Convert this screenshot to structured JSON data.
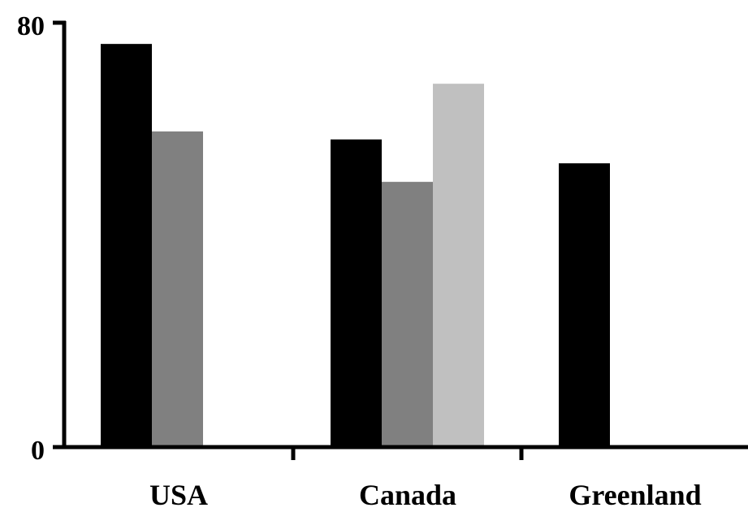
{
  "chart_data": {
    "type": "bar",
    "categories": [
      "USA",
      "Canada",
      "Greenland"
    ],
    "series": [
      {
        "color": "#000000",
        "values": [
          76,
          58,
          53.5
        ]
      },
      {
        "color": "#808080",
        "values": [
          59.5,
          50,
          null
        ]
      },
      {
        "color": "#c0c0c0",
        "values": [
          null,
          68.5,
          null
        ]
      }
    ],
    "ylim": [
      0,
      80
    ],
    "y_ticks": [
      "0",
      "80"
    ],
    "grid": false,
    "legend": "none"
  }
}
